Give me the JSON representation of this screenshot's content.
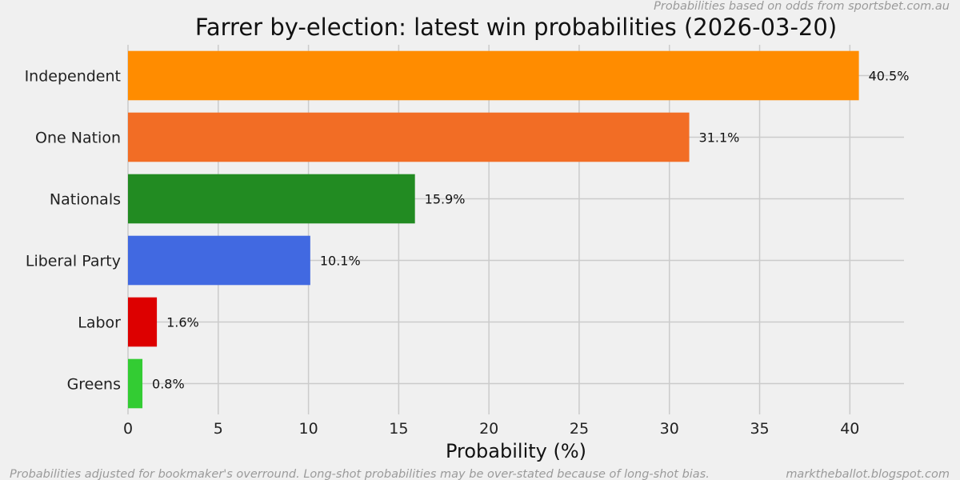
{
  "chart_data": {
    "type": "bar",
    "orientation": "horizontal",
    "title": "Farrer by-election: latest win probabilities (2026-03-20)",
    "xlabel": "Probability (%)",
    "ylabel": "",
    "xlim": [
      0,
      43
    ],
    "xticks": [
      0,
      5,
      10,
      15,
      20,
      25,
      30,
      35,
      40
    ],
    "grid": true,
    "categories": [
      "Independent",
      "One Nation",
      "Nationals",
      "Liberal Party",
      "Labor",
      "Greens"
    ],
    "values": [
      40.5,
      31.1,
      15.9,
      10.1,
      1.6,
      0.8
    ],
    "value_labels": [
      "40.5%",
      "31.1%",
      "15.9%",
      "10.1%",
      "1.6%",
      "0.8%"
    ],
    "colors": [
      "#ff8c00",
      "#f26d25",
      "#228b22",
      "#4169e1",
      "#dd0000",
      "#33cc33"
    ]
  },
  "annotations": {
    "source_note": "Probabilities based on odds from sportsbet.com.au",
    "footer_left": "Probabilities adjusted for bookmaker's overround. Long-shot probabilities may be over-stated because of long-shot bias.",
    "footer_right": "marktheballot.blogspot.com"
  },
  "colors": {
    "background": "#f0f0f0",
    "grid": "#cbcbcb",
    "note_text": "#9a9a9a"
  }
}
